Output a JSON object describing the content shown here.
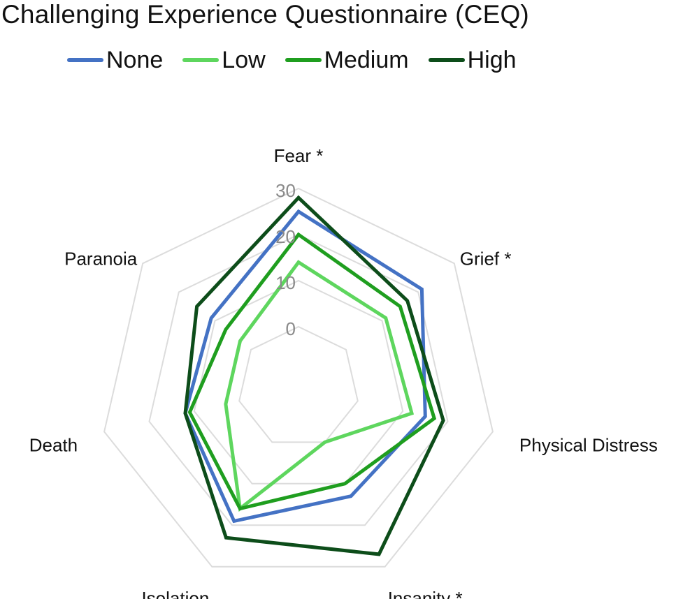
{
  "chart_data": {
    "type": "radar",
    "title": "Challenging Experience Questionnaire (CEQ)",
    "axes": [
      "Fear *",
      "Grief *",
      "Physical Distress",
      "Insanity *",
      "Isolation",
      "Death",
      "Paranoia"
    ],
    "rlim": [
      0,
      30
    ],
    "ticks": [
      0,
      10,
      20,
      30
    ],
    "grid": true,
    "legend_position": "top",
    "series": [
      {
        "name": "None",
        "color": "#4472c4",
        "values": [
          25,
          21,
          15,
          13,
          19,
          12,
          11
        ]
      },
      {
        "name": "Low",
        "color": "#5ed65e",
        "values": [
          14,
          11,
          12,
          0,
          16,
          3,
          3
        ]
      },
      {
        "name": "Medium",
        "color": "#1f9e1f",
        "values": [
          20,
          15,
          17,
          10,
          16,
          11,
          7
        ]
      },
      {
        "name": "High",
        "color": "#0d4d1a",
        "values": [
          28,
          17,
          19,
          27,
          23,
          12,
          15
        ]
      }
    ]
  }
}
